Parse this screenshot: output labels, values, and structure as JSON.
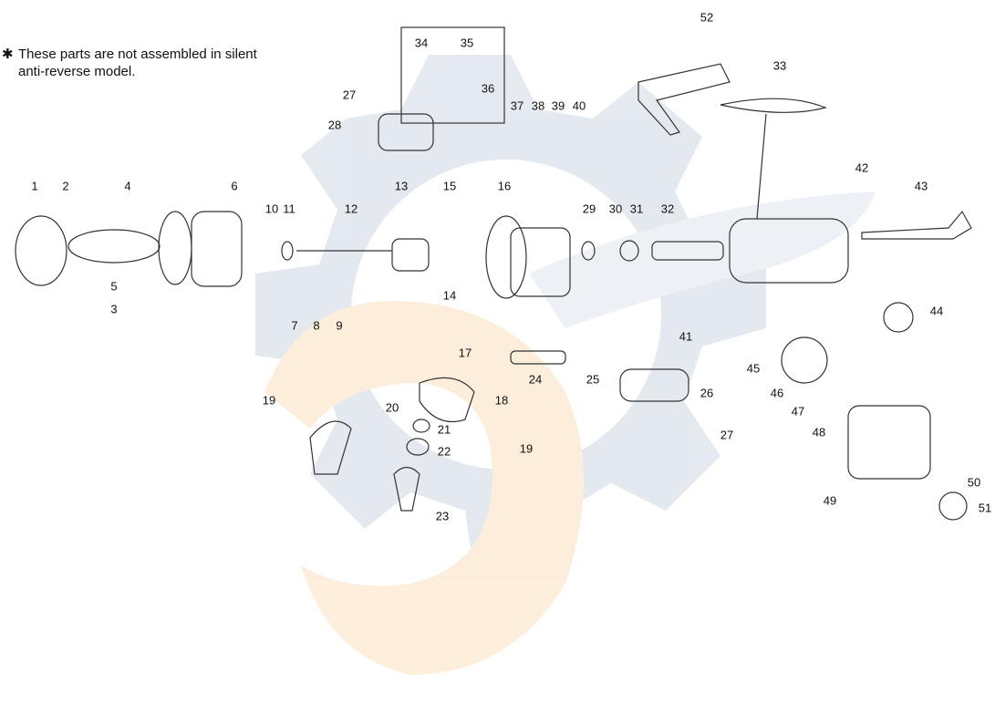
{
  "note": {
    "marker": "✱",
    "lines": [
      "These parts are not assembled in silent",
      "anti-reverse model."
    ]
  },
  "callouts": [
    "1",
    "2",
    "4",
    "6",
    "10",
    "11",
    "12",
    "13",
    "15",
    "16",
    "5",
    "3",
    "7",
    "8",
    "9",
    "14",
    "29",
    "30",
    "31",
    "32",
    "34",
    "35",
    "36",
    "37",
    "38",
    "39",
    "40",
    "27",
    "28",
    "52",
    "33",
    "42",
    "43",
    "44",
    "41",
    "45",
    "46",
    "47",
    "48",
    "49",
    "50",
    "51",
    "17",
    "24",
    "25",
    "26",
    "27",
    "18",
    "19",
    "20",
    "21",
    "22",
    "19",
    "23"
  ]
}
